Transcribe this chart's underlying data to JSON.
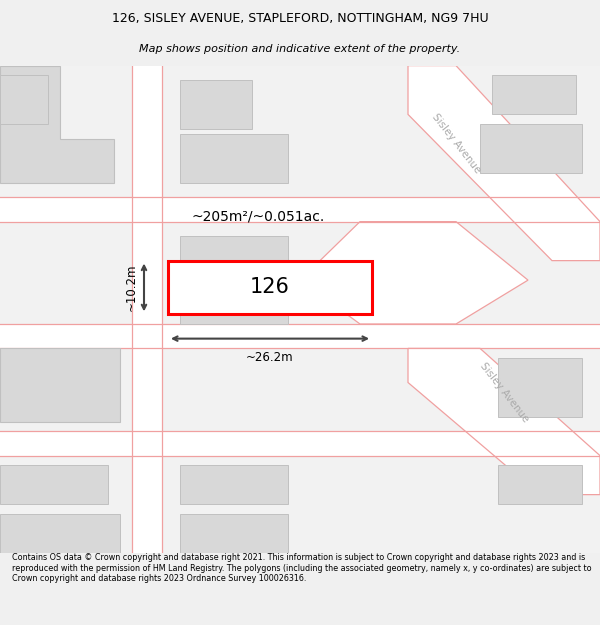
{
  "title_line1": "126, SISLEY AVENUE, STAPLEFORD, NOTTINGHAM, NG9 7HU",
  "title_line2": "Map shows position and indicative extent of the property.",
  "footer_text": "Contains OS data © Crown copyright and database right 2021. This information is subject to Crown copyright and database rights 2023 and is reproduced with the permission of HM Land Registry. The polygons (including the associated geometry, namely x, y co-ordinates) are subject to Crown copyright and database rights 2023 Ordnance Survey 100026316.",
  "background_color": "#f0f0f0",
  "map_background": "#f0f0f0",
  "road_fill": "#ffffff",
  "building_fill": "#d8d8d8",
  "road_line_color": "#f0a0a0",
  "highlight_color": "#ff0000",
  "dimension_color": "#444444",
  "street_label_color": "#aaaaaa",
  "area_text": "~205m²/~0.051ac.",
  "property_label": "126",
  "width_label": "~26.2m",
  "height_label": "~10.2m",
  "sisley_avenue_top": "Sisley Avenue",
  "sisley_avenue_bottom": "Sisley Avenue"
}
